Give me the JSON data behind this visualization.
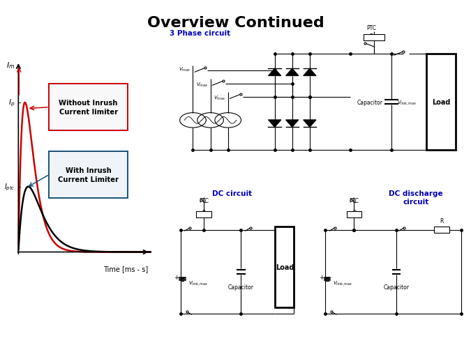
{
  "title": "Overview Continued",
  "title_fontsize": 16,
  "title_fontweight": "bold",
  "bg_color": "#ffffff",
  "label_time": "Time [ms - s]",
  "box_without_color": "#cc0000",
  "box_with_color": "#1a5276",
  "curve_red_color": "#cc0000",
  "curve_black_color": "#000000",
  "circuit_color": "#000000",
  "blue_label_color": "#0000bb",
  "phase3_label": "3 Phase circuit",
  "dc_label": "DC circuit",
  "dc_discharge_label": "DC discharge\ncircuit"
}
